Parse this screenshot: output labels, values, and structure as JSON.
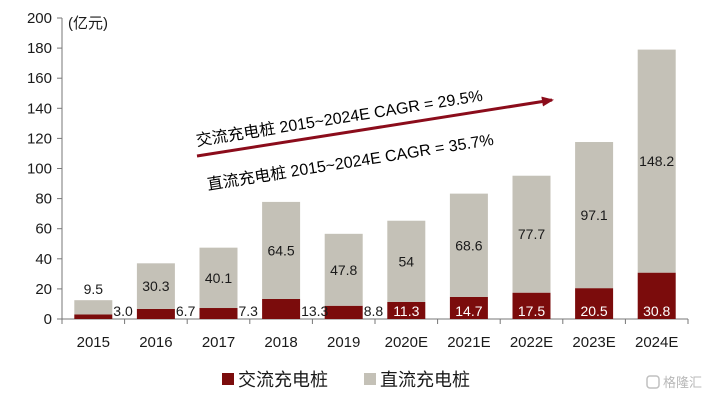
{
  "chart_data": {
    "type": "bar",
    "stacked": true,
    "unit_label": "(亿元)",
    "categories": [
      "2015",
      "2016",
      "2017",
      "2018",
      "2019",
      "2020E",
      "2021E",
      "2022E",
      "2023E",
      "2024E"
    ],
    "series": [
      {
        "name": "交流充电桩",
        "color": "#7b0c0c",
        "values": [
          3.0,
          6.7,
          7.3,
          13.3,
          8.8,
          11.3,
          14.7,
          17.5,
          20.5,
          30.8
        ]
      },
      {
        "name": "直流充电桩",
        "color": "#c4c1b7",
        "values": [
          9.5,
          30.3,
          40.1,
          64.5,
          47.8,
          54,
          68.6,
          77.7,
          97.1,
          148.2
        ]
      }
    ],
    "value_labels": {
      "交流充电桩": [
        "3.0",
        "6.7",
        "7.3",
        "13.3",
        "8.8",
        "11.3",
        "14.7",
        "17.5",
        "20.5",
        "30.8"
      ],
      "直流充电桩": [
        "9.5",
        "30.3",
        "40.1",
        "64.5",
        "47.8",
        "54",
        "68.6",
        "77.7",
        "97.1",
        "148.2"
      ]
    },
    "ylim": [
      0,
      200
    ],
    "yticks": [
      0,
      20,
      40,
      60,
      80,
      100,
      120,
      140,
      160,
      180,
      200
    ],
    "grid": false,
    "legend_position": "bottom",
    "annotations": [
      "交流充电桩 2015~2024E CAGR = 29.5%",
      "直流充电桩 2015~2024E CAGR = 35.7%"
    ],
    "arrow_color": "#8b0c1b"
  },
  "watermark": "格隆汇"
}
